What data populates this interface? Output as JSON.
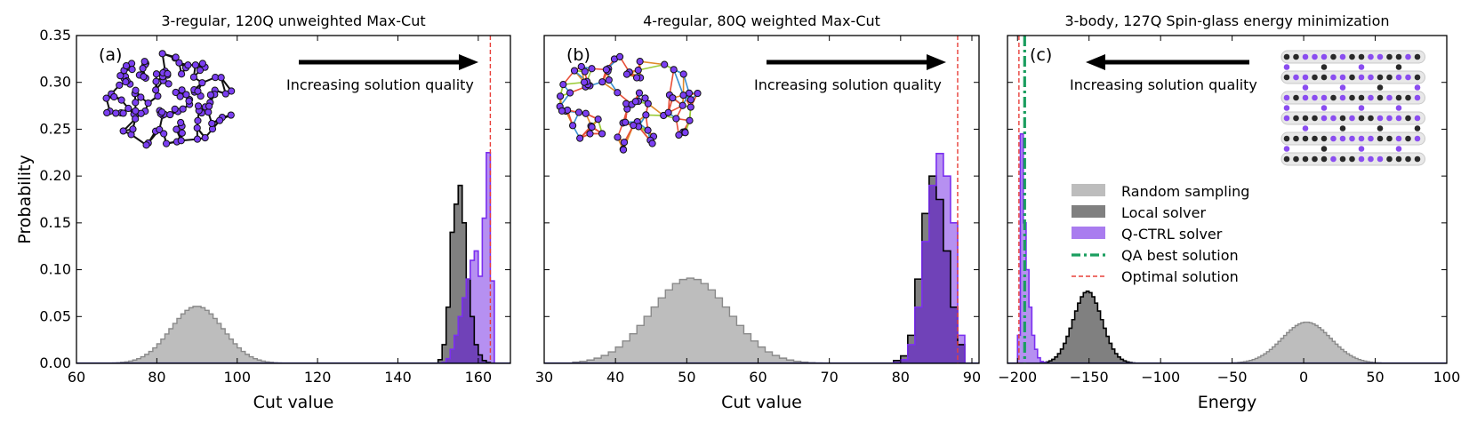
{
  "chart_data": [
    {
      "type": "histogram",
      "panel_label": "(a)",
      "title": "3-regular, 120Q unweighted Max-Cut",
      "xlabel": "Cut value",
      "ylabel": "Probability",
      "xlim": [
        60,
        168
      ],
      "ylim": [
        0,
        0.35
      ],
      "xticks": [
        "60",
        "80",
        "100",
        "120",
        "140",
        "160"
      ],
      "yticks": [
        "0.00",
        "0.05",
        "0.10",
        "0.15",
        "0.20",
        "0.25",
        "0.30",
        "0.35"
      ],
      "arrow_direction": "right",
      "arrow_text": "Increasing solution quality",
      "optimal_solution": 163,
      "inset": "3-regular graph, 120 nodes",
      "series": [
        {
          "name": "Random sampling",
          "type": "gaussian_hist",
          "mean": 90,
          "sigma": 6.5,
          "peak": 0.061,
          "from": 64,
          "to": 116,
          "step": 1
        },
        {
          "name": "Local solver",
          "type": "hist",
          "start": 150,
          "step": 1,
          "values": [
            0.004,
            0.02,
            0.06,
            0.14,
            0.17,
            0.19,
            0.15,
            0.09,
            0.05,
            0.02,
            0.009,
            0.003,
            0.001
          ]
        },
        {
          "name": "Q-CTRL solver",
          "type": "hist",
          "start": 151,
          "step": 1,
          "values": [
            0.001,
            0.005,
            0.015,
            0.03,
            0.05,
            0.07,
            0.09,
            0.11,
            0.12,
            0.093,
            0.155,
            0.225,
            0.088
          ]
        }
      ]
    },
    {
      "type": "histogram",
      "panel_label": "(b)",
      "title": "4-regular, 80Q weighted Max-Cut",
      "xlabel": "Cut value",
      "ylabel": "",
      "xlim": [
        30,
        91
      ],
      "ylim": [
        0,
        0.35
      ],
      "xticks": [
        "30",
        "40",
        "50",
        "60",
        "70",
        "80",
        "90"
      ],
      "yticks": [],
      "arrow_direction": "right",
      "arrow_text": "Increasing solution quality",
      "optimal_solution": 88,
      "inset": "4-regular weighted graph, 80 nodes",
      "series": [
        {
          "name": "Random sampling",
          "type": "gaussian_hist",
          "mean": 50.5,
          "sigma": 5.5,
          "peak": 0.091,
          "from": 34,
          "to": 72,
          "step": 1
        },
        {
          "name": "Local solver",
          "type": "hist",
          "start": 79,
          "step": 1,
          "values": [
            0.003,
            0.008,
            0.03,
            0.09,
            0.16,
            0.2,
            0.175,
            0.12,
            0.06,
            0.02
          ]
        },
        {
          "name": "Q-CTRL solver",
          "type": "hist",
          "start": 79,
          "step": 1,
          "values": [
            0.001,
            0.004,
            0.02,
            0.06,
            0.13,
            0.19,
            0.224,
            0.2,
            0.15,
            0.03
          ]
        }
      ]
    },
    {
      "type": "histogram",
      "panel_label": "(c)",
      "title": "3-body, 127Q Spin-glass energy minimization",
      "xlabel": "Energy",
      "ylabel": "",
      "xlim": [
        -207,
        100
      ],
      "ylim": [
        0,
        0.35
      ],
      "xticks": [
        "−200",
        "−150",
        "−100",
        "−50",
        "0",
        "50",
        "100"
      ],
      "yticks": [],
      "arrow_direction": "left",
      "arrow_text": "Increasing solution quality",
      "optimal_solution": -199,
      "qa_best_solution": -195,
      "inset": "127-qubit heavy-hex lattice",
      "series": [
        {
          "name": "Random sampling",
          "type": "gaussian_hist",
          "mean": 2,
          "sigma": 17,
          "peak": 0.044,
          "from": -52,
          "to": 62,
          "step": 2
        },
        {
          "name": "Local solver",
          "type": "gaussian_hist",
          "mean": -151,
          "sigma": 10,
          "peak": 0.077,
          "from": -188,
          "to": -116,
          "step": 2
        },
        {
          "name": "Q-CTRL solver",
          "type": "hist",
          "start": -200,
          "step": 2,
          "values": [
            0.03,
            0.245,
            0.15,
            0.1,
            0.06,
            0.03,
            0.015,
            0.006,
            0.002,
            0.001
          ]
        }
      ]
    }
  ],
  "legend": {
    "items": [
      {
        "label": "Random sampling",
        "kind": "patch",
        "color": "#bdbdbd"
      },
      {
        "label": "Local solver",
        "kind": "patch",
        "color": "#808080"
      },
      {
        "label": "Q-CTRL solver",
        "kind": "patch",
        "color": "#a97cef"
      },
      {
        "label": "QA best solution",
        "kind": "dashdot",
        "color": "#1a9e5f"
      },
      {
        "label": "Optimal solution",
        "kind": "dashed",
        "color": "#e8403a"
      }
    ]
  },
  "colors": {
    "random_fill": "#bdbdbd",
    "random_edge": "#8a8a8a",
    "local_fill": "#808080",
    "local_edge": "#000000",
    "qctrl_fill": "#a97cef",
    "qctrl_edge": "#7b2ff0",
    "overlap_fill": "#7042b8",
    "optimal": "#e8403a",
    "qa_best": "#1a9e5f",
    "node": "#7b3ff2",
    "edge": "#000000"
  }
}
